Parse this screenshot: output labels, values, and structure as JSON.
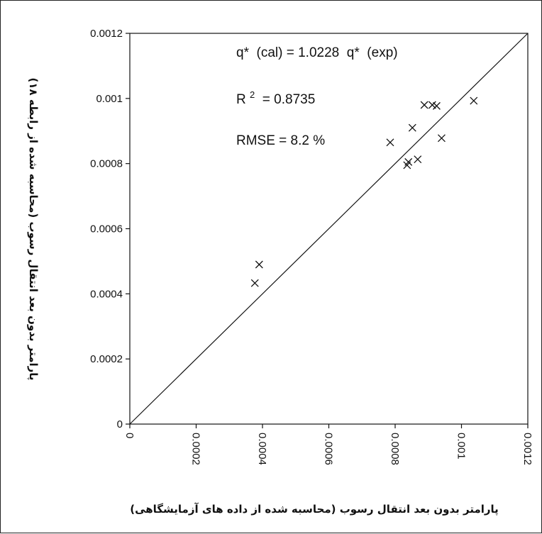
{
  "chart_data": {
    "type": "scatter",
    "title": "",
    "xlabel": "پارامتر بدون بعد انتقال رسوب (محاسبه شده از داده های آزمایشگاهی)",
    "ylabel": "پارامتر بدون بعد انتقال رسوب (محاسبه شده از رابطه ۱۸)",
    "xlim": [
      0,
      0.0012
    ],
    "ylim": [
      0,
      0.0012
    ],
    "x_ticks": [
      "0",
      "0.0002",
      "0.0004",
      "0.0006",
      "0.0008",
      "0.001",
      "0.0012"
    ],
    "y_ticks": [
      "0",
      "0.0002",
      "0.0004",
      "0.0006",
      "0.0008",
      "0.001",
      "0.0012"
    ],
    "grid": false,
    "marker": "x",
    "line": {
      "name": "y = x",
      "x": [
        0,
        0.0012
      ],
      "y": [
        0,
        0.0012
      ]
    },
    "points": [
      {
        "x": 0.000377,
        "y": 0.000433
      },
      {
        "x": 0.00039,
        "y": 0.00049
      },
      {
        "x": 0.000785,
        "y": 0.000865
      },
      {
        "x": 0.000836,
        "y": 0.000795
      },
      {
        "x": 0.00084,
        "y": 0.000805
      },
      {
        "x": 0.000852,
        "y": 0.00091
      },
      {
        "x": 0.000868,
        "y": 0.000813
      },
      {
        "x": 0.000888,
        "y": 0.00098
      },
      {
        "x": 0.000912,
        "y": 0.00098
      },
      {
        "x": 0.000925,
        "y": 0.000977
      },
      {
        "x": 0.00094,
        "y": 0.000878
      },
      {
        "x": 0.001037,
        "y": 0.000993
      }
    ],
    "annotations": {
      "equation": "q*  (cal) = 1.0228  q*  (exp)",
      "r2_prefix": "R",
      "r2_sup": "2",
      "r2_value": " = 0.8735",
      "rmse": "RMSE = 8.2 %"
    }
  }
}
